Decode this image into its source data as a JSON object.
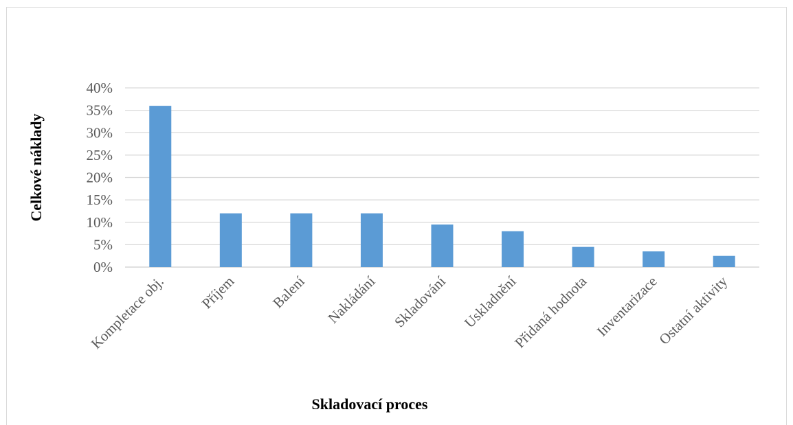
{
  "chart_data": {
    "type": "bar",
    "categories": [
      "Kompletace obj.",
      "Příjem",
      "Balení",
      "Nakládání",
      "Skladování",
      "Uskladnění",
      "Přidaná hodnota",
      "Inventarizace",
      "Ostatní aktivity"
    ],
    "values": [
      36,
      12,
      12,
      12,
      9.5,
      8,
      4.5,
      3.5,
      2.5
    ],
    "unit": "%",
    "title": "",
    "xlabel": "Skladovací proces",
    "ylabel": "Celkové náklady",
    "ylim": [
      0,
      40
    ],
    "yticks": [
      0,
      5,
      10,
      15,
      20,
      25,
      30,
      35,
      40
    ],
    "ytick_labels": [
      "0%",
      "5%",
      "10%",
      "15%",
      "20%",
      "25%",
      "30%",
      "35%",
      "40%"
    ],
    "grid": true,
    "legend": "none",
    "colors": {
      "bar": "#5b9bd5",
      "grid": "#d9d9d9",
      "tick_text": "#595959",
      "title_text": "#000000"
    }
  }
}
